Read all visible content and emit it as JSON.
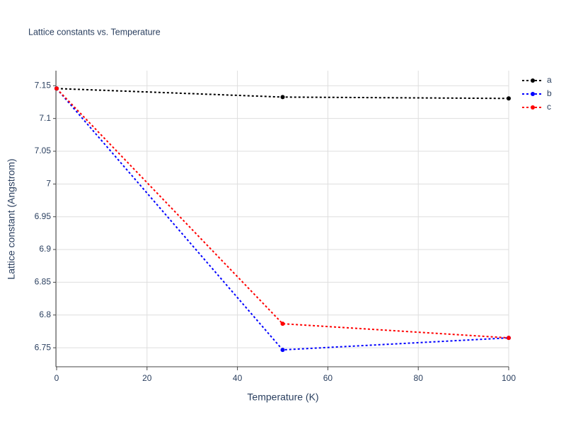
{
  "chart_data": {
    "type": "line",
    "title": "Lattice constants vs. Temperature",
    "x_label": "Temperature (K)",
    "y_label": "Lattice constant (Angstrom)",
    "x": [
      0,
      50,
      100
    ],
    "series": [
      {
        "name": "a",
        "color": "#000000",
        "values": [
          7.1457,
          7.1327,
          7.1306
        ]
      },
      {
        "name": "b",
        "color": "#0000ff",
        "values": [
          7.1457,
          6.7468,
          6.7651
        ]
      },
      {
        "name": "c",
        "color": "#ff0000",
        "values": [
          7.1457,
          6.7867,
          6.7651
        ]
      }
    ],
    "xlim": [
      0,
      100
    ],
    "xticks": [
      0,
      20,
      40,
      60,
      80,
      100
    ],
    "ylim": [
      6.721,
      7.173
    ],
    "yticks": [
      6.75,
      6.8,
      6.85,
      6.9,
      6.95,
      7,
      7.05,
      7.1,
      7.15
    ],
    "grid": true,
    "legend": "top-right"
  }
}
